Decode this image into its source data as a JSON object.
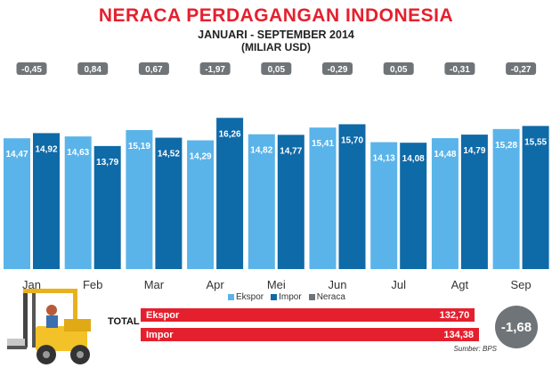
{
  "header": {
    "title": "NERACA PERDAGANGAN INDONESIA",
    "subtitle": "JANUARI - SEPTEMBER 2014",
    "unit": "(MILIAR USD)"
  },
  "legend": {
    "ekspor": "Ekspor",
    "impor": "Impor",
    "neraca": "Neraca"
  },
  "totals": {
    "label": "TOTAL",
    "ekspor_label": "Ekspor",
    "ekspor_value": "132,70",
    "impor_label": "Impor",
    "impor_value": "134,38",
    "neraca_value": "-1,68"
  },
  "source": "Sumber: BPS",
  "colors": {
    "ekspor": "#5ab4ea",
    "impor": "#0f6aa8",
    "neraca": "#6f7478",
    "accent": "#e5202e",
    "background": "#ffffff"
  },
  "chart_data": {
    "type": "bar",
    "categories": [
      "Jan",
      "Feb",
      "Mar",
      "Apr",
      "Mei",
      "Jun",
      "Jul",
      "Agt",
      "Sep"
    ],
    "series": [
      {
        "name": "Ekspor",
        "values": [
          14.47,
          14.63,
          15.19,
          14.29,
          14.82,
          15.41,
          14.13,
          14.48,
          15.28
        ],
        "labels": [
          "14,47",
          "14,63",
          "15,19",
          "14,29",
          "14,82",
          "15,41",
          "14,13",
          "14,48",
          "15,28"
        ]
      },
      {
        "name": "Impor",
        "values": [
          14.92,
          13.79,
          14.52,
          16.26,
          14.77,
          15.7,
          14.08,
          14.79,
          15.55
        ],
        "labels": [
          "14,92",
          "13,79",
          "14,52",
          "16,26",
          "14,77",
          "15,70",
          "14,08",
          "14,79",
          "15,55"
        ]
      },
      {
        "name": "Neraca",
        "values": [
          -0.45,
          0.84,
          0.67,
          -1.97,
          0.05,
          -0.29,
          0.05,
          -0.31,
          -0.27
        ],
        "labels": [
          "-0,45",
          "0,84",
          "0,67",
          "-1,97",
          "0,05",
          "-0,29",
          "0,05",
          "-0,31",
          "-0,27"
        ]
      }
    ],
    "title": "NERACA PERDAGANGAN INDONESIA",
    "xlabel": "",
    "ylabel": "",
    "legend_position": "bottom",
    "grid": false
  }
}
